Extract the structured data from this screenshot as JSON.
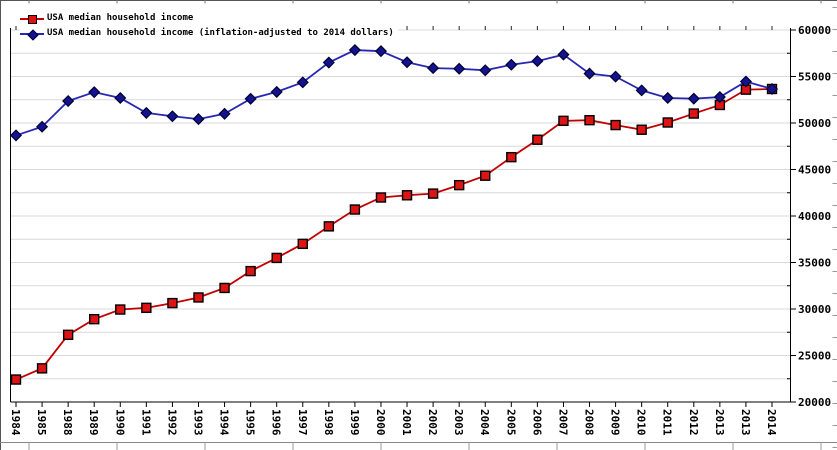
{
  "legend": {
    "items": [
      {
        "label": "USA median household income"
      },
      {
        "label": "USA median household income (inflation-adjusted to 2014 dollars)"
      }
    ]
  },
  "chart_data": {
    "type": "line",
    "title": "",
    "legend_position": "top-left",
    "grid": {
      "horizontal": true,
      "vertical": false,
      "color": "#d9d9d9"
    },
    "categories": [
      "1984",
      "1985",
      "1988",
      "1989",
      "1990",
      "1991",
      "1992",
      "1993",
      "1994",
      "1995",
      "1996",
      "1997",
      "1998",
      "1999",
      "2000",
      "2001",
      "2002",
      "2003",
      "2004",
      "2005",
      "2006",
      "2007",
      "2008",
      "2009",
      "2010",
      "2011",
      "2012",
      "2013",
      "2013",
      "2014"
    ],
    "x_axis": {
      "label_rotation_deg": 90,
      "tick_color": "#000000"
    },
    "y_axis": {
      "side": "right",
      "min": 20000,
      "max": 60000,
      "major_tick": 5000,
      "minor_tick": 2500,
      "tick_labels": [
        "20000",
        "25000",
        "30000",
        "35000",
        "40000",
        "45000",
        "50000",
        "55000",
        "60000"
      ]
    },
    "series": [
      {
        "name": "USA median household income",
        "line_color": "#c00000",
        "marker": "square",
        "marker_fill": "#dd1414",
        "marker_stroke": "#000000",
        "values": [
          22415,
          23618,
          27225,
          28906,
          29943,
          30126,
          30636,
          31241,
          32264,
          34076,
          35492,
          37005,
          38885,
          40696,
          41990,
          42228,
          42409,
          43318,
          44334,
          46326,
          48201,
          50233,
          50303,
          49777,
          49276,
          50054,
          51017,
          51939,
          53585,
          53657
        ]
      },
      {
        "name": "USA median household income (inflation-adjusted to 2014 dollars)",
        "line_color": "#2727b3",
        "marker": "diamond",
        "marker_fill": "#13138f",
        "marker_stroke": "#000033",
        "values": [
          48664,
          49598,
          52360,
          53315,
          52688,
          51086,
          50727,
          50420,
          50990,
          52604,
          53345,
          54367,
          56500,
          57843,
          57724,
          56531,
          55903,
          55837,
          55666,
          56263,
          56658,
          57357,
          55313,
          54988,
          53507,
          52690,
          52619,
          52789,
          54462,
          53657
        ]
      }
    ]
  }
}
